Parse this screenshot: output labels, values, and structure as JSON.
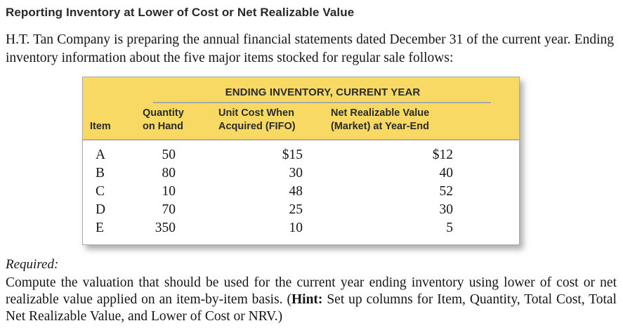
{
  "page": {
    "title": "Reporting Inventory at Lower of Cost or Net Realizable Value",
    "intro": "H.T. Tan Company is preparing the annual financial statements dated December 31 of the current year. Ending inventory information about the five major items stocked for regular sale follows:"
  },
  "table": {
    "banner": "ENDING INVENTORY, CURRENT YEAR",
    "columns": [
      {
        "line1": "Item",
        "line2": ""
      },
      {
        "line1": "Quantity",
        "line2": "on Hand"
      },
      {
        "line1": "Unit Cost When",
        "line2": "Acquired (FIFO)"
      },
      {
        "line1": "Net Realizable Value",
        "line2": "(Market) at Year-End"
      }
    ],
    "rows": [
      [
        "A",
        "50",
        "$15",
        "$12"
      ],
      [
        "B",
        "80",
        "30",
        "40"
      ],
      [
        "C",
        "10",
        "48",
        "52"
      ],
      [
        "D",
        "70",
        "25",
        "30"
      ],
      [
        "E",
        "350",
        "10",
        "5"
      ]
    ],
    "header_bg_color": "#f7d963",
    "rule_color": "#a6a8ab"
  },
  "required": {
    "label": "Required:",
    "before_hint": "Compute the valuation that should be used for the current year ending inventory using lower of cost or net realizable value applied on an item-by-item basis. (",
    "hint_label": "Hint:",
    "after_hint": " Set up columns for Item, Quantity, Total Cost, Total Net Realizable Value, and Lower of Cost or NRV.)"
  }
}
